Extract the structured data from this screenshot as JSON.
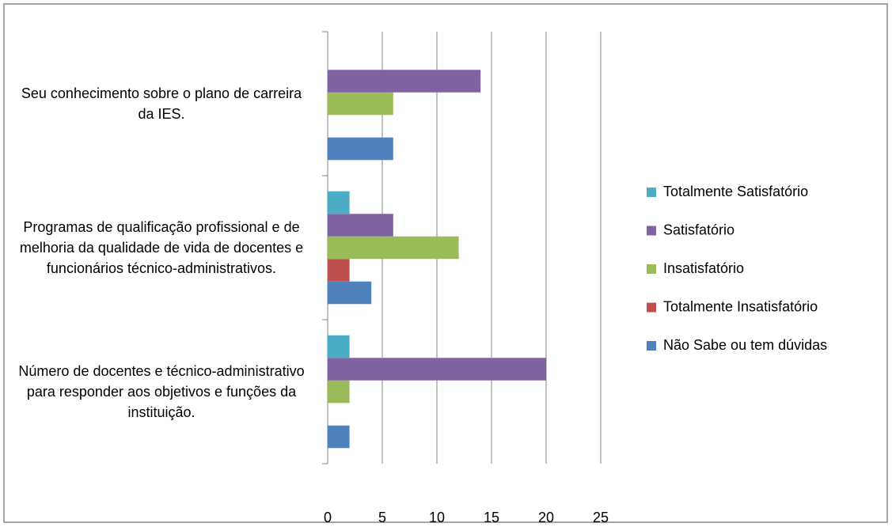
{
  "chart_data": {
    "type": "bar",
    "orientation": "horizontal",
    "categories": [
      "Seu conhecimento sobre o plano de carreira da IES.",
      "Programas de qualificação profissional e de melhoria da qualidade de vida de docentes e funcionários técnico-administrativos.",
      "Número de docentes e  técnico-administrativo para responder aos objetivos e funções da instituição."
    ],
    "series": [
      {
        "name": "Não Sabe ou tem dúvidas",
        "color": "#4f81bd",
        "values": [
          6,
          4,
          2
        ]
      },
      {
        "name": "Totalmente Insatisfatório",
        "color": "#c0504d",
        "values": [
          0,
          2,
          0
        ]
      },
      {
        "name": "Insatisfatório",
        "color": "#9bbb59",
        "values": [
          6,
          12,
          2
        ]
      },
      {
        "name": "Satisfatório",
        "color": "#8064a2",
        "values": [
          14,
          6,
          20
        ]
      },
      {
        "name": "Totalmente Satisfatório",
        "color": "#4bacc6",
        "values": [
          0,
          2,
          2
        ]
      }
    ],
    "xlim": [
      0,
      25
    ],
    "xticks": [
      0,
      5,
      10,
      15,
      20,
      25
    ],
    "grid": true,
    "legend": "right"
  }
}
